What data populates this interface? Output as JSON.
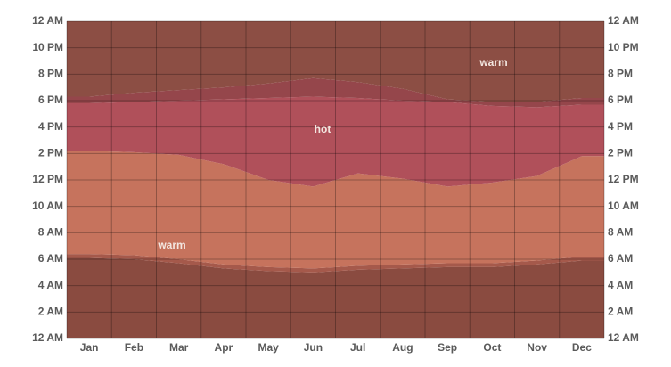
{
  "chart_data": {
    "type": "stacked-area",
    "categories": [
      "Jan",
      "Feb",
      "Mar",
      "Apr",
      "May",
      "Jun",
      "Jul",
      "Aug",
      "Sep",
      "Oct",
      "Nov",
      "Dec"
    ],
    "ylim": [
      0,
      24
    ],
    "yticks": [
      {
        "value": 0,
        "label": "12 AM"
      },
      {
        "value": 2,
        "label": "2 AM"
      },
      {
        "value": 4,
        "label": "4 AM"
      },
      {
        "value": 6,
        "label": "6 AM"
      },
      {
        "value": 8,
        "label": "8 AM"
      },
      {
        "value": 10,
        "label": "10 AM"
      },
      {
        "value": 12,
        "label": "12 PM"
      },
      {
        "value": 14,
        "label": "2 PM"
      },
      {
        "value": 16,
        "label": "4 PM"
      },
      {
        "value": 18,
        "label": "6 PM"
      },
      {
        "value": 20,
        "label": "8 PM"
      },
      {
        "value": 22,
        "label": "10 PM"
      },
      {
        "value": 24,
        "label": "12 AM"
      }
    ],
    "grid": true,
    "series": [
      {
        "color": "#8a4b40",
        "values": [
          6.1,
          6.0,
          5.7,
          5.3,
          5.1,
          5.0,
          5.2,
          5.3,
          5.4,
          5.4,
          5.6,
          5.9
        ]
      },
      {
        "color": "#a5594b",
        "values": [
          0.3,
          0.3,
          0.3,
          0.3,
          0.3,
          0.3,
          0.3,
          0.3,
          0.3,
          0.3,
          0.3,
          0.3
        ]
      },
      {
        "color": "#c6735d",
        "values": [
          7.8,
          7.8,
          7.9,
          7.6,
          6.6,
          6.2,
          7.0,
          6.5,
          5.8,
          6.1,
          6.4,
          7.6
        ]
      },
      {
        "color": "#b0505a",
        "values": [
          3.6,
          3.8,
          4.1,
          4.9,
          6.2,
          6.8,
          5.7,
          5.9,
          6.4,
          5.8,
          5.2,
          3.9
        ]
      },
      {
        "color": "#95464b",
        "values": [
          0.5,
          0.7,
          0.8,
          0.9,
          1.1,
          1.4,
          1.2,
          0.9,
          0.2,
          0.3,
          0.4,
          0.5
        ]
      },
      {
        "color": "#8c4e44",
        "values": [
          5.7,
          5.4,
          5.2,
          5.0,
          4.7,
          4.3,
          4.6,
          5.1,
          5.9,
          6.1,
          6.1,
          5.8
        ]
      }
    ],
    "annotations": [
      "warm",
      "hot",
      "warm"
    ]
  }
}
